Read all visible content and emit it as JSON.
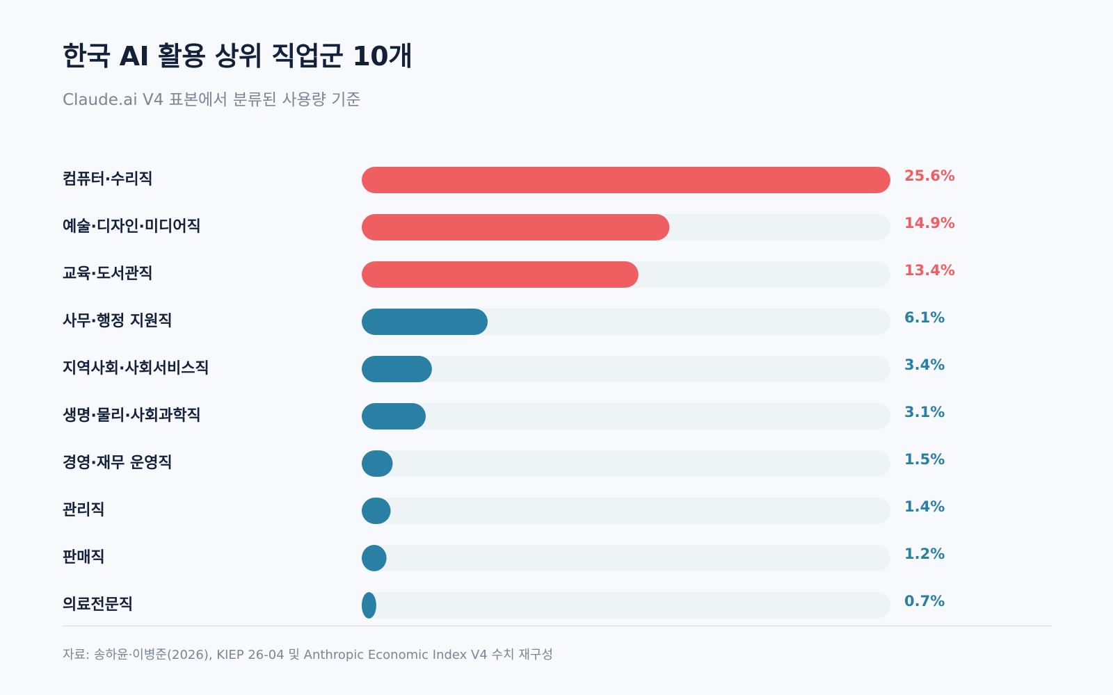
{
  "chart_data": {
    "type": "bar",
    "orientation": "horizontal",
    "title": "한국 AI 활용 상위 직업군 10개",
    "subtitle": "Claude.ai V4 표본에서 분류된 사용량 기준",
    "categories": [
      "컴퓨터·수리직",
      "예술·디자인·미디어직",
      "교육·도서관직",
      "사무·행정 지원직",
      "지역사회·사회서비스직",
      "생명·물리·사회과학직",
      "경영·재무 운영직",
      "관리직",
      "판매직",
      "의료전문직"
    ],
    "values": [
      25.6,
      14.9,
      13.4,
      6.1,
      3.4,
      3.1,
      1.5,
      1.4,
      1.2,
      0.7
    ],
    "value_labels": [
      "25.6%",
      "14.9%",
      "13.4%",
      "6.1%",
      "3.4%",
      "3.1%",
      "1.5%",
      "1.4%",
      "1.2%",
      "0.7%"
    ],
    "xlim": [
      0,
      25.6
    ],
    "highlight_top_n": 3,
    "colors": {
      "highlight": "#ef5f61",
      "default": "#2a7fa5",
      "track": "#eef3f6",
      "label": "#13203a"
    },
    "source": "자료: 송하윤·이병준(2026), KIEP 26-04 및 Anthropic Economic Index V4 수치 재구성"
  }
}
